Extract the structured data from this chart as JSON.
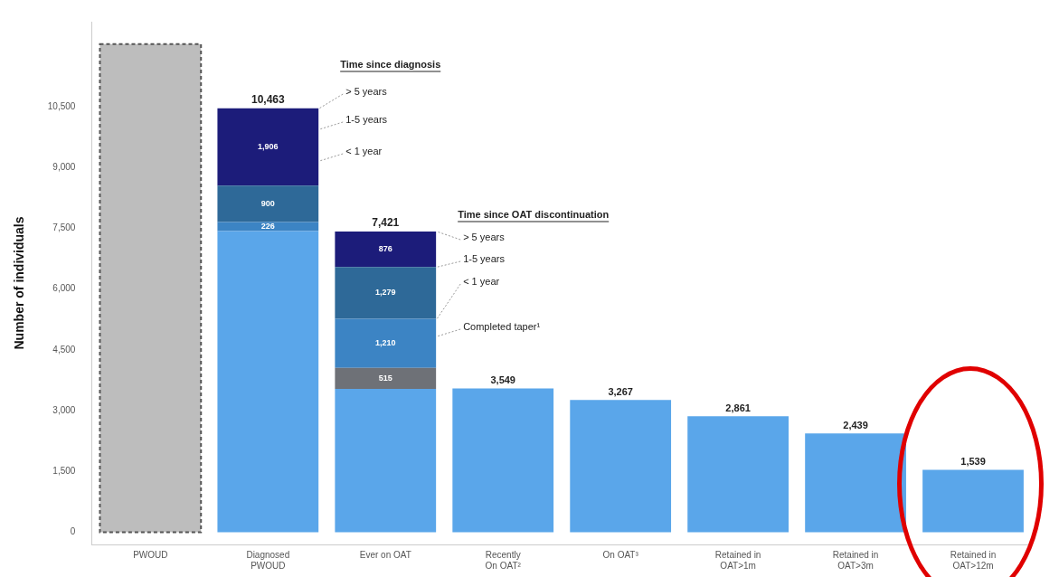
{
  "chart_data": {
    "type": "bar",
    "stacked": true,
    "ylabel": "Number of individuals",
    "categories": [
      "PWOUD",
      "Diagnosed\nPWOUD",
      "Ever on OAT",
      "Recently\nOn OAT²",
      "On OAT³",
      "Retained in\nOAT>1m",
      "Retained in\nOAT>3m",
      "Retained in\nOAT>12m"
    ],
    "series": [
      {
        "color": "#bdbdbd",
        "line_style": "dashed",
        "values": [
          12050,
          null,
          null,
          null,
          null,
          null,
          null,
          null
        ]
      },
      {
        "color": "#5aa6ea",
        "values": [
          null,
          7431,
          3541,
          3549,
          3267,
          2861,
          2439,
          1539
        ],
        "value_labels": [
          null,
          null,
          null,
          "3,549",
          "3,267",
          "2,861",
          "2,439",
          "1,539"
        ]
      },
      {
        "color": "#6e7177",
        "values": [
          null,
          null,
          515,
          null,
          null,
          null,
          null,
          null
        ],
        "value_labels": [
          null,
          null,
          "515",
          null,
          null,
          null,
          null,
          null
        ]
      },
      {
        "color": "#3c84c4",
        "values": [
          null,
          226,
          1210,
          null,
          null,
          null,
          null,
          null
        ],
        "value_labels": [
          null,
          "226",
          "1,210",
          null,
          null,
          null,
          null,
          null
        ]
      },
      {
        "color": "#2e6998",
        "values": [
          null,
          900,
          1279,
          null,
          null,
          null,
          null,
          null
        ],
        "value_labels": [
          null,
          "900",
          "1,279",
          null,
          null,
          null,
          null,
          null
        ]
      },
      {
        "color": "#1c1c7a",
        "values": [
          null,
          1906,
          876,
          null,
          null,
          null,
          null,
          null
        ],
        "value_labels": [
          null,
          "1,906",
          "876",
          null,
          null,
          null,
          null,
          null
        ]
      }
    ],
    "totals": [
      null,
      "10,463",
      "7,421",
      null,
      null,
      null,
      null,
      null
    ],
    "ylim": [
      -300,
      12600
    ],
    "yticks": [
      {
        "value": 0,
        "label": "0"
      },
      {
        "value": 1500,
        "label": "1,500"
      },
      {
        "value": 3000,
        "label": "3,000"
      },
      {
        "value": 4500,
        "label": "4,500"
      },
      {
        "value": 6000,
        "label": "6,000"
      },
      {
        "value": 7500,
        "label": "7,500"
      },
      {
        "value": 9000,
        "label": "9,000"
      },
      {
        "value": 10500,
        "label": "10,500"
      }
    ],
    "grid": false,
    "legend": false,
    "annotations": [
      "Time since diagnosis",
      "> 5 years",
      "1-5 years",
      "< 1 year",
      "Time since OAT discontinuation",
      "> 5 years",
      "1-5 years",
      "< 1 year",
      "Completed taper¹"
    ]
  }
}
